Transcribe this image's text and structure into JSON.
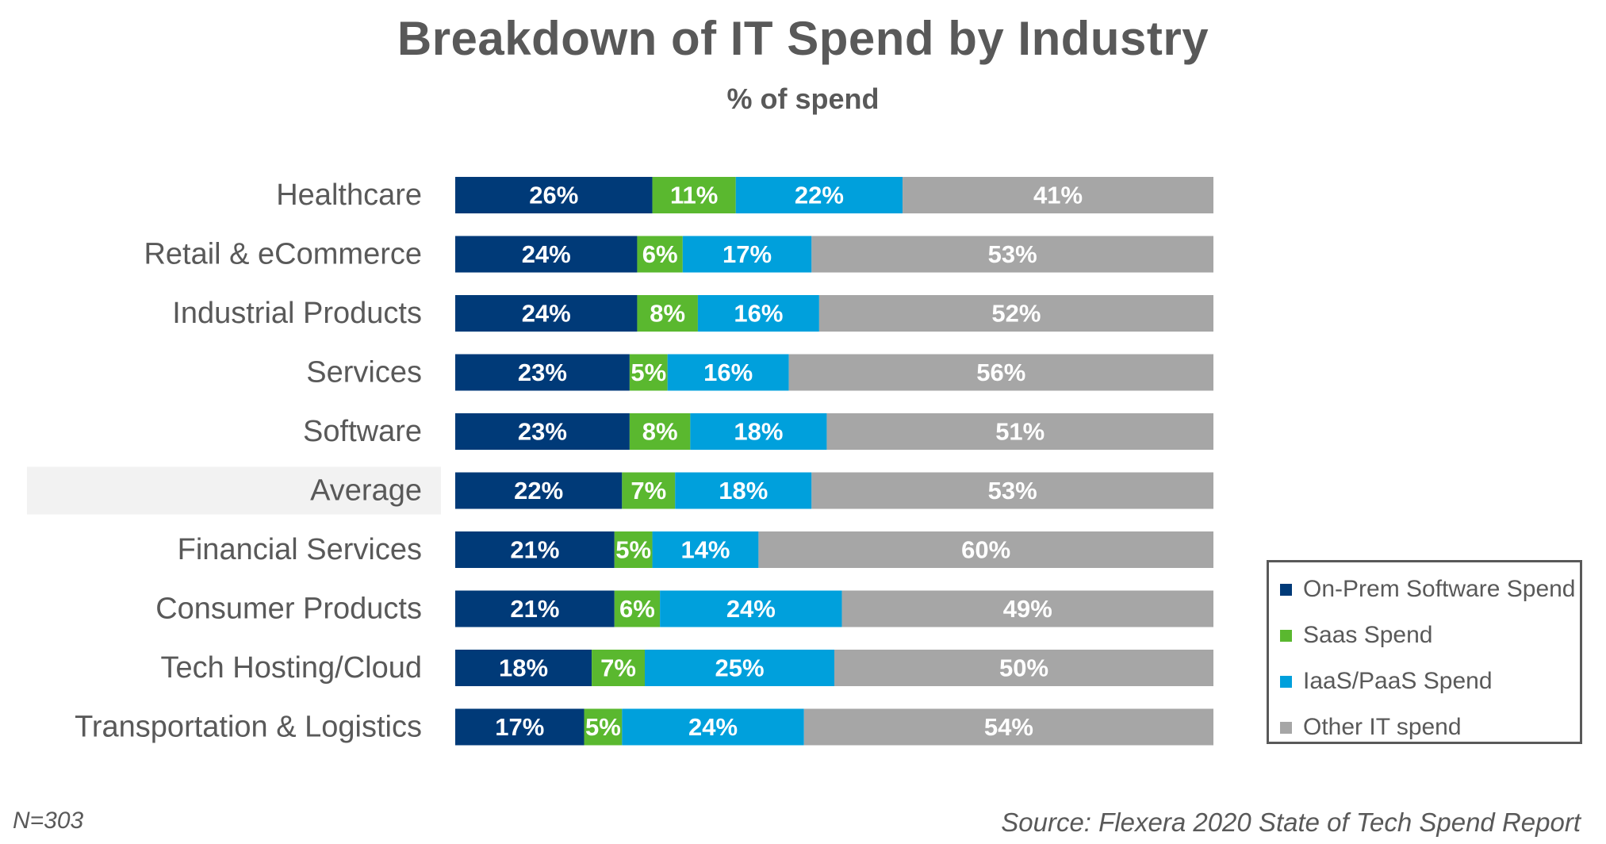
{
  "chart_data": {
    "type": "bar",
    "orientation": "horizontal",
    "stacked": true,
    "title": "Breakdown of IT Spend by Industry",
    "subtitle": "% of spend",
    "categories": [
      "Healthcare",
      "Retail & eCommerce",
      "Industrial Products",
      "Services",
      "Software",
      "Average",
      "Financial Services",
      "Consumer Products",
      "Tech Hosting/Cloud",
      "Transportation & Logistics"
    ],
    "highlighted_category": "Average",
    "series": [
      {
        "name": "On-Prem Software Spend",
        "color": "#003a78",
        "values": [
          26,
          24,
          24,
          23,
          23,
          22,
          21,
          21,
          18,
          17
        ]
      },
      {
        "name": "Saas Spend",
        "color": "#5ab82f",
        "values": [
          11,
          6,
          8,
          5,
          8,
          7,
          5,
          6,
          7,
          5
        ]
      },
      {
        "name": "IaaS/PaaS Spend",
        "color": "#00a0dc",
        "values": [
          22,
          17,
          16,
          16,
          18,
          18,
          14,
          24,
          25,
          24
        ]
      },
      {
        "name": "Other IT spend",
        "color": "#a6a6a6",
        "values": [
          41,
          53,
          52,
          56,
          51,
          53,
          60,
          49,
          50,
          54
        ]
      }
    ],
    "value_suffix": "%",
    "xlim": [
      0,
      100
    ],
    "grid": false,
    "legend_position": "bottom-right"
  },
  "legend": {
    "items": [
      {
        "label": "On-Prem Software Spend",
        "color": "#003a78"
      },
      {
        "label": "Saas Spend",
        "color": "#5ab82f"
      },
      {
        "label": "IaaS/PaaS Spend",
        "color": "#00a0dc"
      },
      {
        "label": "Other IT spend",
        "color": "#a6a6a6"
      }
    ]
  },
  "notes": {
    "sample_size": "N=303",
    "source": "Source: Flexera 2020 State of Tech Spend Report"
  }
}
